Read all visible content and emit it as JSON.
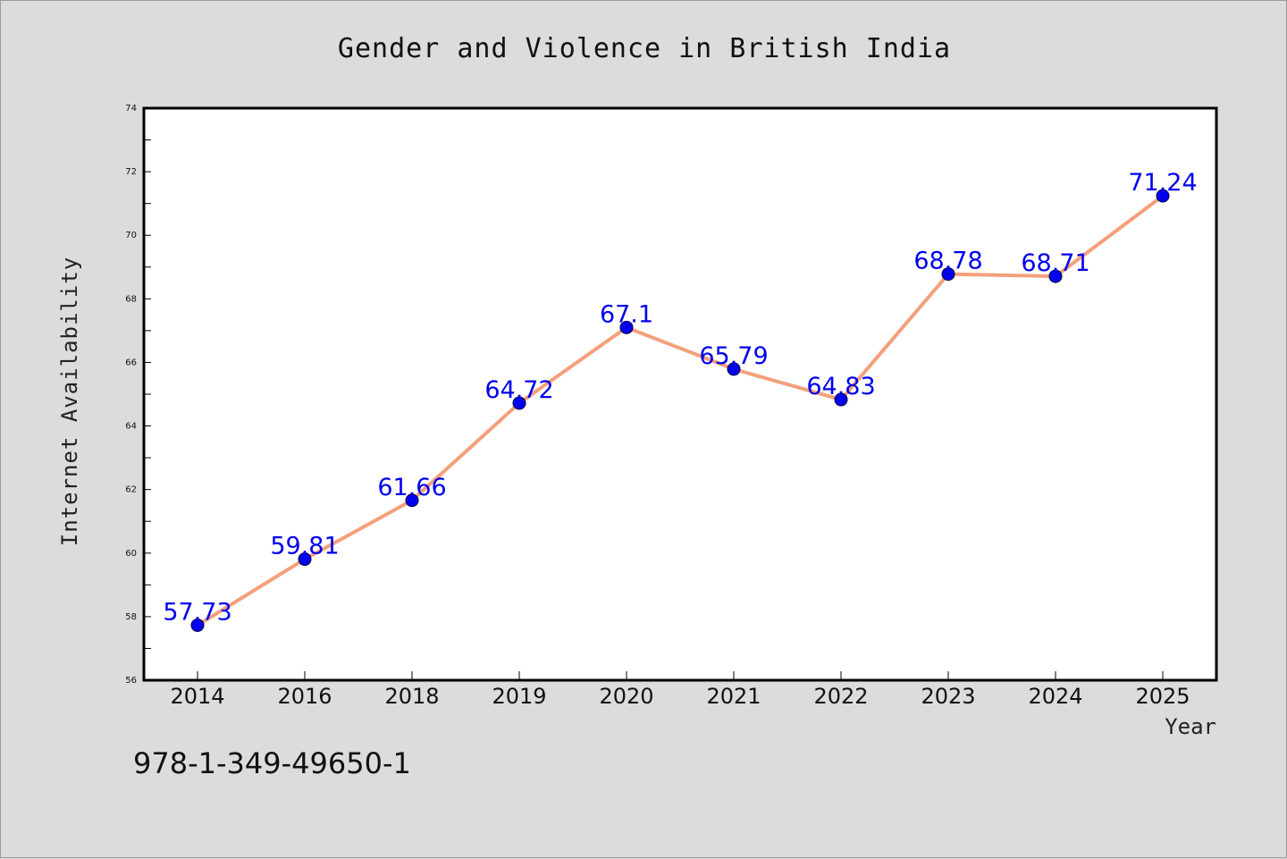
{
  "chart_data": {
    "type": "line",
    "title": "Gender and Violence in British India",
    "xlabel": "Year",
    "ylabel": "Internet Availability",
    "categories": [
      "2014",
      "2016",
      "2018",
      "2019",
      "2020",
      "2021",
      "2022",
      "2023",
      "2024",
      "2025"
    ],
    "series": [
      {
        "values": [
          57.73,
          59.81,
          61.66,
          64.72,
          67.1,
          65.79,
          64.83,
          68.78,
          68.71,
          71.24
        ],
        "labels": [
          "57.73",
          "59.81",
          "61.66",
          "64.72",
          "67.1",
          "65.79",
          "64.83",
          "68.78",
          "68.71",
          "71.24"
        ],
        "line_color": "#f4a07a",
        "marker_color": "#0000ee"
      }
    ],
    "ylim": [
      56,
      74
    ],
    "yticks": [
      "56",
      "58",
      "60",
      "62",
      "64",
      "66",
      "68",
      "70",
      "72",
      "74"
    ],
    "grid": false,
    "legend": "none",
    "background_color": "#dcdcdc",
    "plot_background_color": "#ffffff",
    "label_color": "#0000ee"
  },
  "footer": {
    "isbn": "978-1-349-49650-1"
  }
}
